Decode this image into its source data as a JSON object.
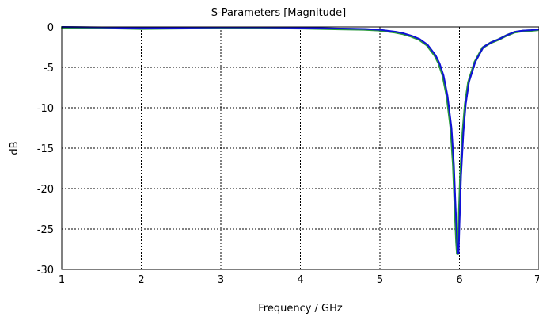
{
  "chart_data": {
    "type": "line",
    "title": "S-Parameters [Magnitude]",
    "xlabel": "Frequency / GHz",
    "ylabel": "dB",
    "xlim": [
      1,
      7
    ],
    "ylim": [
      -30,
      0
    ],
    "xticks": [
      1,
      2,
      3,
      4,
      5,
      6,
      7
    ],
    "yticks": [
      0,
      -5,
      -10,
      -15,
      -20,
      -25,
      -30
    ],
    "x_tick_labels": [
      "1",
      "2",
      "3",
      "4",
      "5",
      "6",
      "7"
    ],
    "y_tick_labels": [
      "0",
      "-5",
      "-10",
      "-15",
      "-20",
      "-25",
      "-30"
    ],
    "grid": true,
    "colors": {
      "series_primary": "#1010d8",
      "series_secondary": "#2a9a3a",
      "grid": "#000000",
      "axis": "#000000"
    },
    "series": [
      {
        "values": [
          [
            1.0,
            0.0
          ],
          [
            1.5,
            -0.05
          ],
          [
            2.0,
            -0.15
          ],
          [
            2.5,
            -0.1
          ],
          [
            3.0,
            -0.05
          ],
          [
            3.5,
            -0.05
          ],
          [
            4.0,
            -0.1
          ],
          [
            4.5,
            -0.2
          ],
          [
            4.8,
            -0.25
          ],
          [
            5.0,
            -0.35
          ],
          [
            5.2,
            -0.6
          ],
          [
            5.3,
            -0.8
          ],
          [
            5.4,
            -1.1
          ],
          [
            5.5,
            -1.5
          ],
          [
            5.6,
            -2.2
          ],
          [
            5.7,
            -3.5
          ],
          [
            5.75,
            -4.5
          ],
          [
            5.8,
            -6.0
          ],
          [
            5.85,
            -8.5
          ],
          [
            5.9,
            -12.5
          ],
          [
            5.93,
            -17.0
          ],
          [
            5.95,
            -22.0
          ],
          [
            5.97,
            -26.5
          ],
          [
            5.98,
            -28.0
          ],
          [
            5.99,
            -28.0
          ],
          [
            6.0,
            -24.5
          ],
          [
            6.02,
            -18.5
          ],
          [
            6.05,
            -13.0
          ],
          [
            6.08,
            -9.5
          ],
          [
            6.12,
            -6.8
          ],
          [
            6.2,
            -4.3
          ],
          [
            6.3,
            -2.5
          ],
          [
            6.4,
            -1.9
          ],
          [
            6.5,
            -1.5
          ],
          [
            6.6,
            -1.0
          ],
          [
            6.7,
            -0.6
          ],
          [
            6.8,
            -0.45
          ],
          [
            6.9,
            -0.4
          ],
          [
            7.0,
            -0.3
          ]
        ]
      }
    ]
  }
}
